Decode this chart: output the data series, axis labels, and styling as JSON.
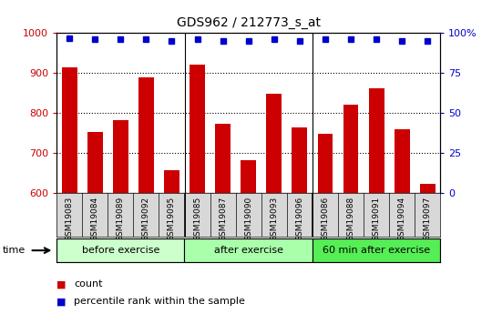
{
  "title": "GDS962 / 212773_s_at",
  "categories": [
    "GSM19083",
    "GSM19084",
    "GSM19089",
    "GSM19092",
    "GSM19095",
    "GSM19085",
    "GSM19087",
    "GSM19090",
    "GSM19093",
    "GSM19096",
    "GSM19086",
    "GSM19088",
    "GSM19091",
    "GSM19094",
    "GSM19097"
  ],
  "counts": [
    915,
    752,
    783,
    888,
    657,
    921,
    773,
    682,
    849,
    764,
    748,
    822,
    862,
    760,
    622
  ],
  "percentiles": [
    97,
    96,
    96,
    96,
    95,
    96,
    95,
    95,
    96,
    95,
    96,
    96,
    96,
    95,
    95
  ],
  "groups": [
    {
      "label": "before exercise",
      "start": 0,
      "end": 5,
      "color": "#ccffcc"
    },
    {
      "label": "after exercise",
      "start": 5,
      "end": 10,
      "color": "#aaffaa"
    },
    {
      "label": "60 min after exercise",
      "start": 10,
      "end": 15,
      "color": "#55ee55"
    }
  ],
  "bar_color": "#cc0000",
  "dot_color": "#0000cc",
  "ylim_left": [
    600,
    1000
  ],
  "ylim_right": [
    0,
    100
  ],
  "yticks_left": [
    600,
    700,
    800,
    900,
    1000
  ],
  "yticks_right": [
    0,
    25,
    50,
    75,
    100
  ],
  "background_color": "#ffffff",
  "xlabel_time": "time",
  "legend_count": "count",
  "legend_percentile": "percentile rank within the sample",
  "tick_label_color": "#cc0000",
  "right_tick_color": "#0000cc",
  "xtick_bg": "#d8d8d8",
  "bar_bottom": 600
}
